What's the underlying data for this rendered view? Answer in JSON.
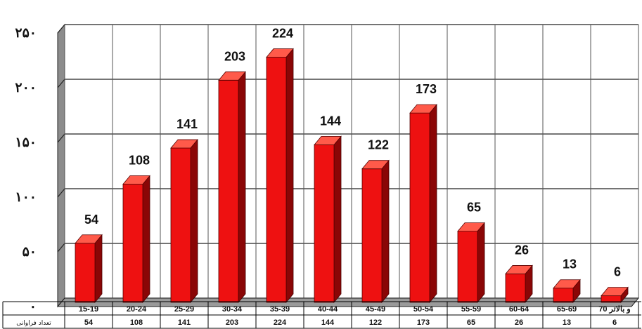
{
  "chart_data": {
    "type": "bar",
    "categories": [
      "15-19",
      "20-24",
      "25-29",
      "30-34",
      "35-39",
      "40-44",
      "45-49",
      "50-54",
      "55-59",
      "60-64",
      "65-69",
      "70 و بالاتر"
    ],
    "series": [
      {
        "name": "تعداد فراوانی",
        "values": [
          54,
          108,
          141,
          203,
          224,
          144,
          122,
          173,
          65,
          26,
          13,
          6
        ]
      }
    ],
    "y_ticks": [
      "۰",
      "۵۰",
      "۱۰۰",
      "۱۵۰",
      "۲۰۰",
      "۲۵۰"
    ],
    "ylim": [
      0,
      250
    ],
    "grid": true,
    "colors": {
      "bar_front": "#ee1111",
      "bar_side": "#8a0606",
      "bar_top": "#ff5a4a",
      "wall": "#8c8c8c",
      "floor": "#9a9a9a"
    }
  },
  "table": {
    "row_header": "تعداد فراوانی"
  }
}
